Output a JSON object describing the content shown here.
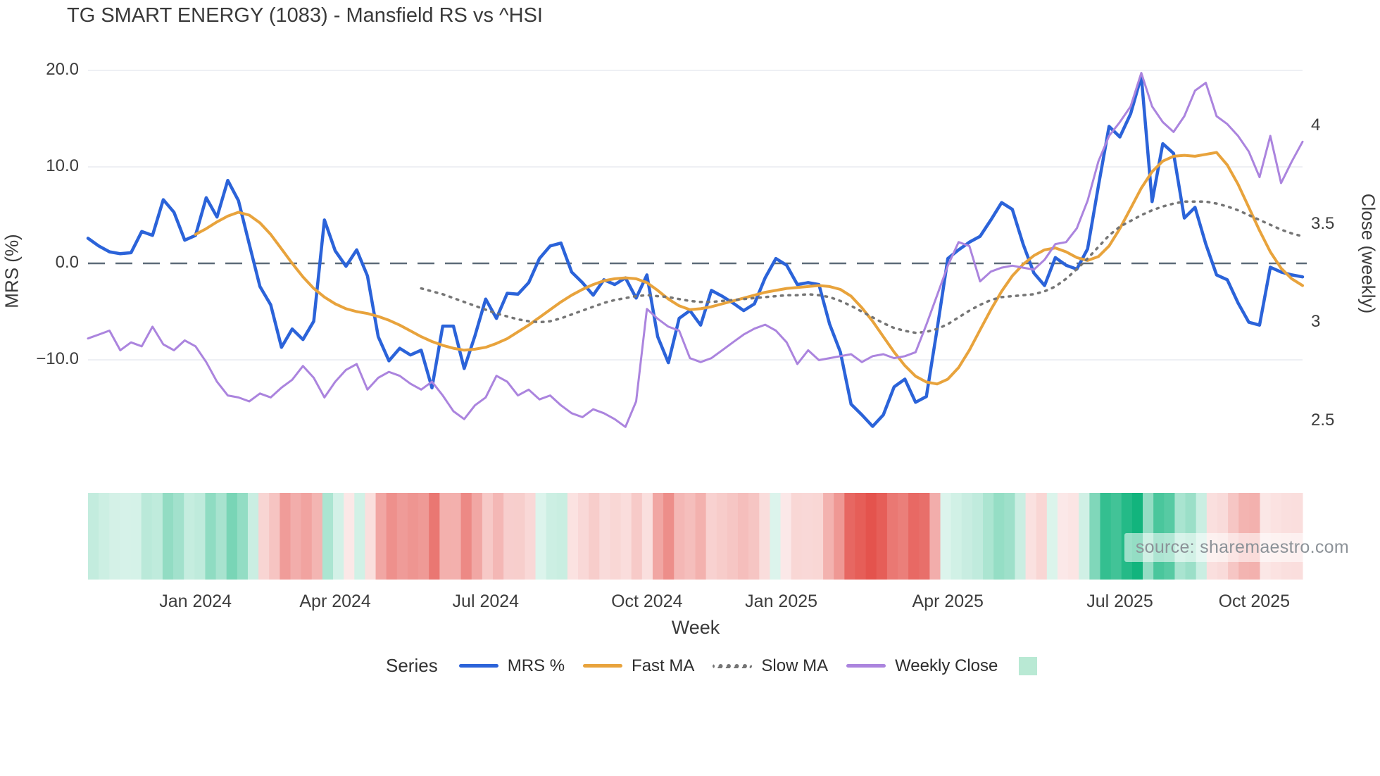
{
  "header": {
    "title": "TG SMART ENERGY (1083) - Mansfield RS vs ^HSI"
  },
  "watermark": {
    "text": "source: sharemaestro.com"
  },
  "legend": {
    "title": "Series",
    "items": [
      {
        "label": "MRS %",
        "color": "#2b63d9",
        "style": "solid"
      },
      {
        "label": "Fast MA",
        "color": "#e8a33c",
        "style": "solid"
      },
      {
        "label": "Slow MA",
        "color": "#757575",
        "style": "dotted"
      },
      {
        "label": "Weekly Close",
        "color": "#ab84de",
        "style": "solid"
      }
    ],
    "heat_swatch_color": "#b9e9d4"
  },
  "chart_data": {
    "type": "line",
    "title": "TG SMART ENERGY (1083) - Mansfield RS vs ^HSI",
    "xlabel": "Week",
    "x_unit": "week",
    "n_points": 114,
    "grid": "horizontal",
    "x_ticks": [
      {
        "label": "Jan 2024",
        "index": 10
      },
      {
        "label": "Apr 2024",
        "index": 23
      },
      {
        "label": "Jul 2024",
        "index": 37
      },
      {
        "label": "Oct 2024",
        "index": 52
      },
      {
        "label": "Jan 2025",
        "index": 64.5
      },
      {
        "label": "Apr 2025",
        "index": 80
      },
      {
        "label": "Jul 2025",
        "index": 96
      },
      {
        "label": "Oct 2025",
        "index": 108.5
      }
    ],
    "left_axis": {
      "label": "MRS (%)",
      "ticks": [
        {
          "label": "20.0",
          "value": 20.0
        },
        {
          "label": "10.0",
          "value": 10.0
        },
        {
          "label": "0.0",
          "value": 0.0
        },
        {
          "label": "−10.0",
          "value": -10.0
        }
      ],
      "zero_line": true,
      "ylim": [
        -20,
        21.5
      ]
    },
    "right_axis": {
      "label": "Close (weekly)",
      "ticks": [
        {
          "label": "4",
          "value": 4
        },
        {
          "label": "3.5",
          "value": 3.5
        },
        {
          "label": "3",
          "value": 3
        },
        {
          "label": "2.5",
          "value": 2.5
        }
      ],
      "ylim": [
        2.3,
        4.35
      ]
    },
    "series": [
      {
        "name": "MRS %",
        "axis": "left",
        "color": "#2b63d9",
        "style": "solid",
        "width": 4.5,
        "values": [
          2.6,
          1.8,
          1.2,
          1.0,
          1.1,
          3.3,
          2.9,
          6.6,
          5.3,
          2.4,
          2.9,
          6.8,
          4.8,
          8.6,
          6.5,
          2.0,
          -2.4,
          -4.3,
          -8.7,
          -6.8,
          -7.9,
          -6.0,
          4.5,
          1.3,
          -0.3,
          1.4,
          -1.3,
          -7.6,
          -10.1,
          -8.8,
          -9.5,
          -9.0,
          -12.9,
          -6.5,
          -6.5,
          -10.9,
          -7.5,
          -3.7,
          -5.7,
          -3.1,
          -3.2,
          -2.0,
          0.5,
          1.8,
          2.1,
          -0.9,
          -2.0,
          -3.3,
          -1.7,
          -2.2,
          -1.5,
          -3.6,
          -1.2,
          -7.6,
          -10.3,
          -5.7,
          -4.9,
          -6.4,
          -2.8,
          -3.4,
          -4.1,
          -4.9,
          -4.2,
          -1.5,
          0.5,
          -0.2,
          -2.2,
          -2.0,
          -2.2,
          -6.3,
          -9.2,
          -14.6,
          -15.7,
          -16.9,
          -15.7,
          -12.8,
          -12.0,
          -14.4,
          -13.8,
          -6.8,
          0.5,
          1.4,
          2.2,
          2.8,
          4.5,
          6.3,
          5.6,
          2.0,
          -1.0,
          -2.3,
          0.6,
          -0.2,
          -0.6,
          1.5,
          8.0,
          14.2,
          13.1,
          15.5,
          19.4,
          6.4,
          12.4,
          11.4,
          4.7,
          5.8,
          2.0,
          -1.2,
          -1.7,
          -4.1,
          -6.1,
          -6.4,
          -0.4,
          -0.9,
          -1.2,
          -1.4
        ]
      },
      {
        "name": "Fast MA",
        "axis": "left",
        "color": "#e8a33c",
        "style": "solid",
        "width": 4,
        "values": [
          null,
          null,
          null,
          null,
          null,
          null,
          null,
          null,
          null,
          null,
          3.0,
          3.6,
          4.3,
          4.9,
          5.3,
          5.0,
          4.2,
          3.0,
          1.5,
          0.0,
          -1.4,
          -2.6,
          -3.5,
          -4.2,
          -4.7,
          -5.0,
          -5.2,
          -5.5,
          -5.9,
          -6.4,
          -7.0,
          -7.6,
          -8.1,
          -8.5,
          -8.8,
          -9.0,
          -8.9,
          -8.7,
          -8.3,
          -7.8,
          -7.1,
          -6.4,
          -5.6,
          -4.8,
          -4.0,
          -3.3,
          -2.7,
          -2.2,
          -1.8,
          -1.6,
          -1.5,
          -1.6,
          -2.0,
          -2.8,
          -3.7,
          -4.4,
          -4.8,
          -4.7,
          -4.5,
          -4.2,
          -3.9,
          -3.6,
          -3.3,
          -3.0,
          -2.8,
          -2.6,
          -2.5,
          -2.4,
          -2.3,
          -2.4,
          -2.7,
          -3.4,
          -4.6,
          -6.0,
          -7.6,
          -9.2,
          -10.6,
          -11.7,
          -12.3,
          -12.5,
          -12.0,
          -10.8,
          -9.0,
          -6.9,
          -4.8,
          -2.9,
          -1.3,
          -0.1,
          0.8,
          1.4,
          1.6,
          1.2,
          0.6,
          0.3,
          0.7,
          1.8,
          3.6,
          5.7,
          7.8,
          9.5,
          10.6,
          11.1,
          11.2,
          11.1,
          11.3,
          11.5,
          10.2,
          8.2,
          5.8,
          3.4,
          1.2,
          -0.5,
          -1.6,
          -2.3
        ]
      },
      {
        "name": "Slow MA",
        "axis": "left",
        "color": "#757575",
        "style": "dotted",
        "width": 3.5,
        "values": [
          null,
          null,
          null,
          null,
          null,
          null,
          null,
          null,
          null,
          null,
          null,
          null,
          null,
          null,
          null,
          null,
          null,
          null,
          null,
          null,
          null,
          null,
          null,
          null,
          null,
          null,
          null,
          null,
          null,
          null,
          null,
          -2.6,
          -2.9,
          -3.2,
          -3.6,
          -4.0,
          -4.4,
          -4.8,
          -5.2,
          -5.5,
          -5.8,
          -6.0,
          -6.1,
          -6.0,
          -5.7,
          -5.3,
          -4.9,
          -4.5,
          -4.1,
          -3.8,
          -3.6,
          -3.4,
          -3.3,
          -3.4,
          -3.5,
          -3.7,
          -3.9,
          -4.0,
          -4.0,
          -3.9,
          -3.8,
          -3.7,
          -3.6,
          -3.5,
          -3.4,
          -3.3,
          -3.3,
          -3.2,
          -3.3,
          -3.5,
          -3.9,
          -4.4,
          -5.0,
          -5.6,
          -6.2,
          -6.7,
          -7.0,
          -7.2,
          -7.1,
          -6.8,
          -6.3,
          -5.6,
          -4.9,
          -4.3,
          -3.8,
          -3.5,
          -3.4,
          -3.3,
          -3.2,
          -2.9,
          -2.4,
          -1.6,
          -0.6,
          0.5,
          1.7,
          2.9,
          3.8,
          4.4,
          5.0,
          5.5,
          5.9,
          6.2,
          6.4,
          6.4,
          6.4,
          6.2,
          5.9,
          5.5,
          5.0,
          4.5,
          4.0,
          3.5,
          3.1,
          2.8
        ]
      },
      {
        "name": "Weekly Close",
        "axis": "right",
        "color": "#ab84de",
        "style": "solid",
        "width": 3,
        "values": [
          2.92,
          2.94,
          2.96,
          2.86,
          2.9,
          2.88,
          2.98,
          2.89,
          2.86,
          2.91,
          2.88,
          2.8,
          2.7,
          2.63,
          2.62,
          2.6,
          2.64,
          2.62,
          2.67,
          2.71,
          2.78,
          2.72,
          2.62,
          2.7,
          2.76,
          2.79,
          2.66,
          2.72,
          2.75,
          2.73,
          2.69,
          2.66,
          2.7,
          2.63,
          2.55,
          2.51,
          2.58,
          2.62,
          2.73,
          2.7,
          2.63,
          2.66,
          2.61,
          2.63,
          2.58,
          2.54,
          2.52,
          2.56,
          2.54,
          2.51,
          2.47,
          2.6,
          3.07,
          3.02,
          2.98,
          2.96,
          2.82,
          2.8,
          2.82,
          2.86,
          2.9,
          2.94,
          2.97,
          2.99,
          2.96,
          2.9,
          2.79,
          2.86,
          2.81,
          2.82,
          2.83,
          2.84,
          2.8,
          2.83,
          2.84,
          2.82,
          2.83,
          2.85,
          2.99,
          3.14,
          3.29,
          3.41,
          3.39,
          3.21,
          3.26,
          3.28,
          3.29,
          3.28,
          3.27,
          3.32,
          3.4,
          3.41,
          3.48,
          3.62,
          3.82,
          3.95,
          4.02,
          4.1,
          4.27,
          4.1,
          4.02,
          3.97,
          4.05,
          4.18,
          4.22,
          4.05,
          4.01,
          3.95,
          3.87,
          3.74,
          3.95,
          3.71,
          3.82,
          3.92
        ]
      }
    ],
    "heatmap": {
      "based_on": "MRS %",
      "positive_color": "#12b47d",
      "negative_color": "#e4524c",
      "max_abs": 17
    },
    "colors": {
      "grid": "#e9ebf0",
      "zero_line": "#5d6b79",
      "text": "#3a3a3a"
    }
  }
}
